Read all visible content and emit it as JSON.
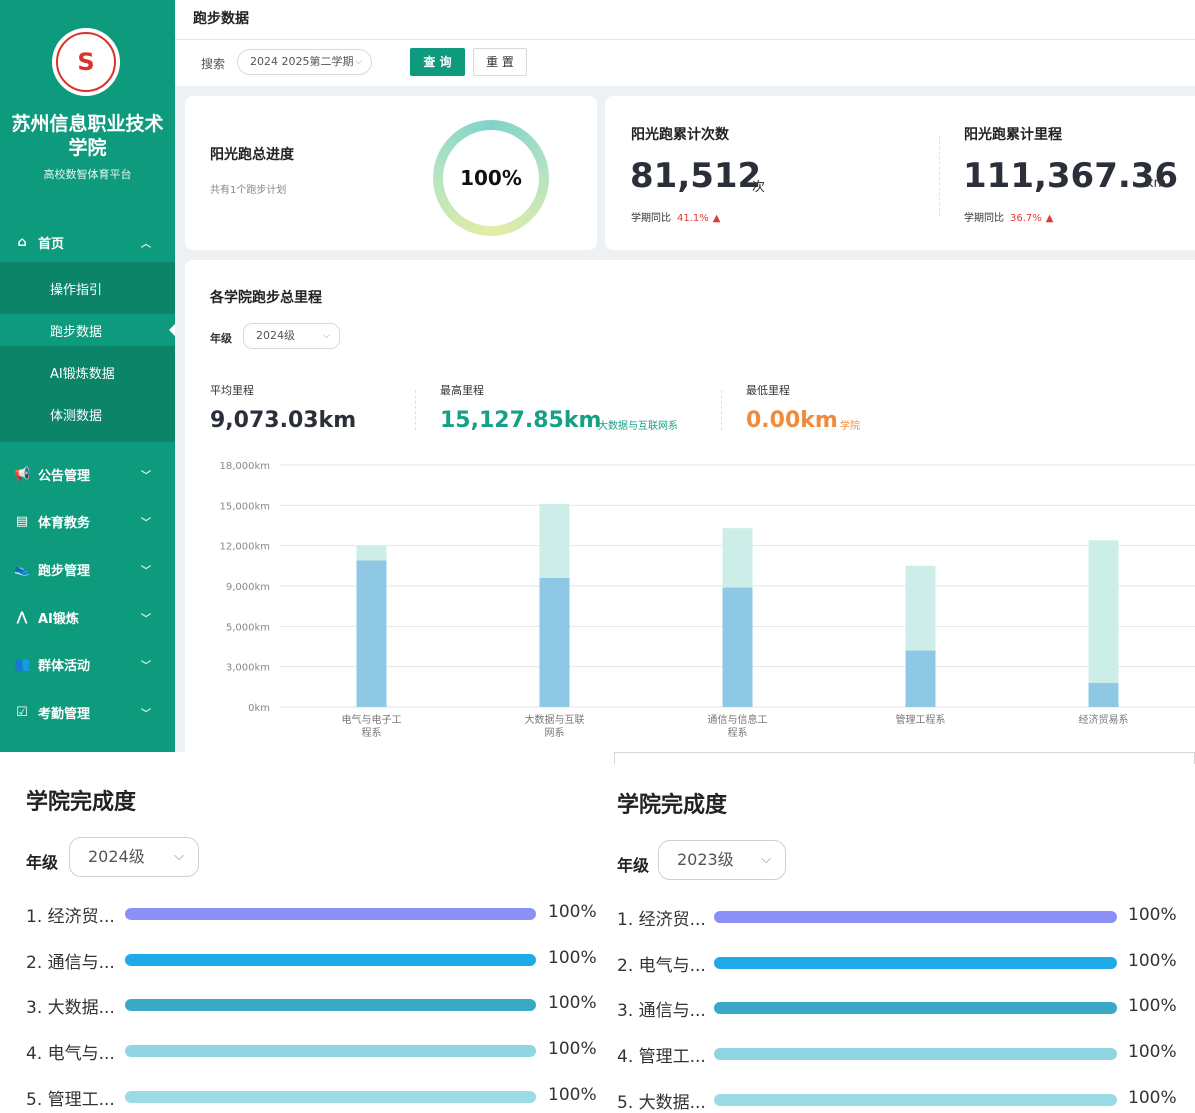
{
  "sidebar": {
    "school_name": "苏州信息职业技术学院",
    "subtitle": "高校数智体育平台",
    "home_label": "首页",
    "sub_items": [
      "操作指引",
      "跑步数据",
      "AI锻炼数据",
      "体测数据"
    ],
    "menu": [
      {
        "label": "公告管理",
        "icon": "megaphone-icon"
      },
      {
        "label": "体育教务",
        "icon": "document-icon"
      },
      {
        "label": "跑步管理",
        "icon": "shoe-icon"
      },
      {
        "label": "AI锻炼",
        "icon": "ai-icon"
      },
      {
        "label": "群体活动",
        "icon": "people-icon"
      },
      {
        "label": "考勤管理",
        "icon": "calendar-check-icon"
      }
    ]
  },
  "page": {
    "title": "跑步数据"
  },
  "search": {
    "label": "搜索",
    "term": "2024 2025第二学期",
    "query_btn": "查 询",
    "reset_btn": "重 置"
  },
  "progress": {
    "title": "阳光跑总进度",
    "note": "共有1个跑步计划",
    "percent_text": "100%"
  },
  "count": {
    "title": "阳光跑累计次数",
    "value": "81,512",
    "unit": "次",
    "cmp_label": "学期同比",
    "cmp_value": "41.1%"
  },
  "distance": {
    "title": "阳光跑累计里程",
    "value": "111,367.36",
    "unit": "km",
    "cmp_label": "学期同比",
    "cmp_value": "36.7%"
  },
  "college": {
    "title": "各学院跑步总里程",
    "grade_label": "年级",
    "grade_value": "2024级",
    "avg_label": "平均里程",
    "avg_value": "9,073.03km",
    "max_label": "最高里程",
    "max_value": "15,127.85km",
    "max_college": "大数据与互联网系",
    "min_label": "最低里程",
    "min_value": "0.00km",
    "min_college": "学院"
  },
  "chart_data": {
    "type": "bar",
    "y_ticks": [
      "0km",
      "3,000km",
      "5,000km",
      "9,000km",
      "12,000km",
      "15,000km",
      "18,000km"
    ],
    "ylim": [
      0,
      18000
    ],
    "categories": [
      [
        "电气与电子工",
        "程系"
      ],
      [
        "大数据与互联",
        "网系"
      ],
      [
        "通信与信息工",
        "程系"
      ],
      [
        "管理工程系"
      ],
      [
        "经济贸易系"
      ]
    ],
    "series": [
      {
        "values": [
          10900,
          9600,
          8900,
          4200,
          1800
        ],
        "color": "#8ec8e4"
      },
      {
        "values": [
          1100,
          5500,
          4400,
          6300,
          10600
        ],
        "color": "#cdeee8"
      }
    ]
  },
  "completion_left": {
    "title": "学院完成度",
    "grade_label": "年级",
    "grade_value": "2024级",
    "rows": [
      {
        "name": "1. 经济贸...",
        "pct": "100%",
        "color": "#8a90f5"
      },
      {
        "name": "2. 通信与...",
        "pct": "100%",
        "color": "#1ea9e8"
      },
      {
        "name": "3. 大数据...",
        "pct": "100%",
        "color": "#39a9c6"
      },
      {
        "name": "4. 电气与...",
        "pct": "100%",
        "color": "#8fd6e2"
      },
      {
        "name": "5. 管理工...",
        "pct": "100%",
        "color": "#9bdbe6"
      }
    ]
  },
  "completion_right": {
    "title": "学院完成度",
    "grade_label": "年级",
    "grade_value": "2023级",
    "rows": [
      {
        "name": "1. 经济贸...",
        "pct": "100%",
        "color": "#8a90f5"
      },
      {
        "name": "2. 电气与...",
        "pct": "100%",
        "color": "#1ea9e8"
      },
      {
        "name": "3. 通信与...",
        "pct": "100%",
        "color": "#39a9c6"
      },
      {
        "name": "4. 管理工...",
        "pct": "100%",
        "color": "#8fd6e2"
      },
      {
        "name": "5. 大数据...",
        "pct": "100%",
        "color": "#9bdbe6"
      }
    ]
  }
}
